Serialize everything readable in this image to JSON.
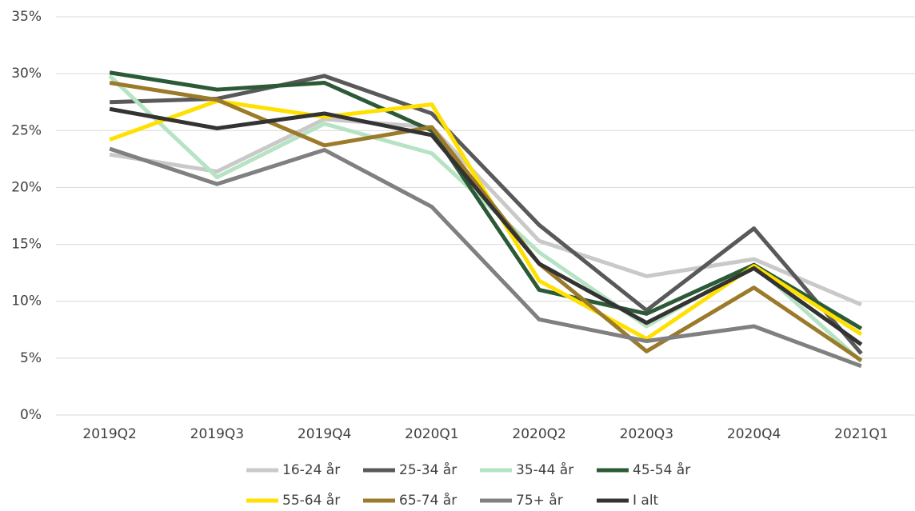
{
  "chart_data": {
    "type": "line",
    "categories": [
      "2019Q2",
      "2019Q3",
      "2019Q4",
      "2020Q1",
      "2020Q2",
      "2020Q3",
      "2020Q4",
      "2021Q1"
    ],
    "series": [
      {
        "name": "16-24 år",
        "color": "#c9c9c9",
        "values": [
          22.9,
          21.4,
          26.0,
          25.3,
          15.3,
          12.2,
          13.7,
          9.7
        ]
      },
      {
        "name": "25-34 år",
        "color": "#595959",
        "values": [
          27.5,
          27.8,
          29.8,
          26.5,
          16.7,
          9.2,
          16.4,
          5.4
        ]
      },
      {
        "name": "35-44 år",
        "color": "#b5e3c3",
        "values": [
          29.8,
          20.9,
          25.6,
          23.0,
          14.3,
          7.8,
          13.2,
          4.7
        ]
      },
      {
        "name": "45-54 år",
        "color": "#2c5a37",
        "values": [
          30.1,
          28.6,
          29.2,
          25.0,
          11.0,
          8.9,
          13.2,
          7.6
        ]
      },
      {
        "name": "55-64 år",
        "color": "#ffe000",
        "values": [
          24.2,
          27.6,
          26.2,
          27.3,
          11.8,
          6.7,
          13.1,
          7.1
        ]
      },
      {
        "name": "65-74 år",
        "color": "#9b7a2a",
        "values": [
          29.2,
          27.7,
          23.7,
          25.3,
          13.3,
          5.6,
          11.2,
          4.8
        ]
      },
      {
        "name": "75+ år",
        "color": "#808080",
        "values": [
          23.4,
          20.3,
          23.3,
          18.3,
          8.4,
          6.5,
          7.8,
          4.3
        ]
      },
      {
        "name": "I alt",
        "color": "#333333",
        "values": [
          26.9,
          25.2,
          26.5,
          24.6,
          13.3,
          8.1,
          12.9,
          6.2
        ]
      }
    ],
    "ylim": [
      0,
      35
    ],
    "yticks": [
      {
        "value": 0,
        "label": "0%"
      },
      {
        "value": 5,
        "label": "5%"
      },
      {
        "value": 10,
        "label": "10%"
      },
      {
        "value": 15,
        "label": "15%"
      },
      {
        "value": 20,
        "label": "20%"
      },
      {
        "value": 25,
        "label": "25%"
      },
      {
        "value": 30,
        "label": "30%"
      },
      {
        "value": 35,
        "label": "35%"
      }
    ],
    "grid": true
  }
}
